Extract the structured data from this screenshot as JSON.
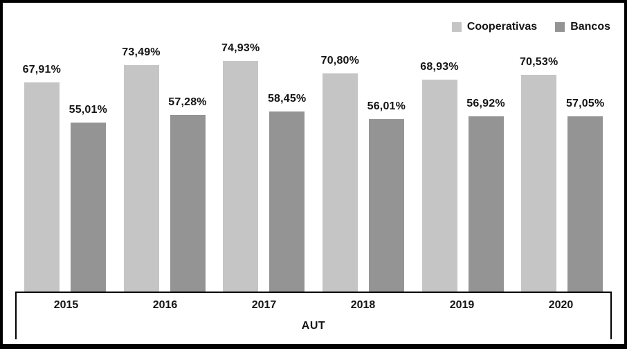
{
  "chart_data": {
    "type": "bar",
    "title": "",
    "xlabel": "AUT",
    "ylabel": "",
    "ylim": [
      0,
      80
    ],
    "grid": false,
    "legend_position": "top-right",
    "value_format": "percent-comma-decimal",
    "categories": [
      "2015",
      "2016",
      "2017",
      "2018",
      "2019",
      "2020"
    ],
    "series": [
      {
        "name": "Cooperativas",
        "color": "#c5c5c5",
        "values": [
          67.91,
          73.49,
          74.93,
          70.8,
          68.93,
          70.53
        ],
        "labels": [
          "67,91%",
          "73,49%",
          "74,93%",
          "70,80%",
          "68,93%",
          "70,53%"
        ]
      },
      {
        "name": "Bancos",
        "color": "#949494",
        "values": [
          55.01,
          57.28,
          58.45,
          56.01,
          56.92,
          57.05
        ],
        "labels": [
          "55,01%",
          "57,28%",
          "58,45%",
          "56,01%",
          "56,92%",
          "57,05%"
        ]
      }
    ]
  },
  "colors": {
    "border": "#000000",
    "label_text": "#141414",
    "background": "#ffffff"
  }
}
